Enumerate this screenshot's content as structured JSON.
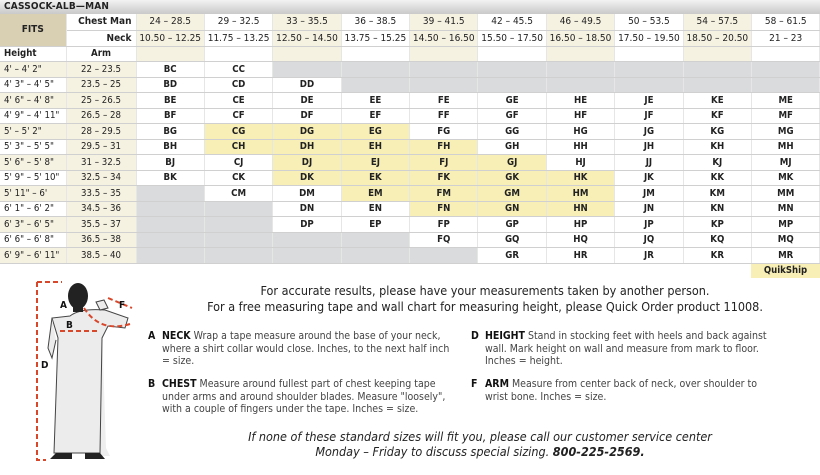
{
  "title": "CASSOCK-ALB—MAN",
  "header": {
    "fits": "FITS",
    "chest_label": "Chest Man",
    "neck_label": "Neck",
    "height_label": "Height",
    "arm_label": "Arm",
    "chest": [
      "24 – 28.5",
      "29 – 32.5",
      "33 – 35.5",
      "36 – 38.5",
      "39 – 41.5",
      "42 – 45.5",
      "46 – 49.5",
      "50 – 53.5",
      "54 – 57.5",
      "58 – 61.5"
    ],
    "neck": [
      "10.50 – 12.25",
      "11.75 – 13.25",
      "12.50 – 14.50",
      "13.75 – 15.25",
      "14.50 – 16.50",
      "15.50 – 17.50",
      "16.50 – 18.50",
      "17.50 – 19.50",
      "18.50 – 20.50",
      "21 – 23"
    ]
  },
  "rows": [
    {
      "height": "4' – 4' 2\"",
      "arm": "22 – 23.5",
      "sizes": [
        "BC",
        "CC",
        null,
        null,
        null,
        null,
        null,
        null,
        null,
        null
      ]
    },
    {
      "height": "4' 3\" – 4' 5\"",
      "arm": "23.5 – 25",
      "sizes": [
        "BD",
        "CD",
        "DD",
        null,
        null,
        null,
        null,
        null,
        null,
        null
      ]
    },
    {
      "height": "4' 6\" – 4' 8\"",
      "arm": "25 – 26.5",
      "sizes": [
        "BE",
        "CE",
        "DE",
        "EE",
        "FE",
        "GE",
        "HE",
        "JE",
        "KE",
        "ME"
      ]
    },
    {
      "height": "4' 9\" – 4' 11\"",
      "arm": "26.5 – 28",
      "sizes": [
        "BF",
        "CF",
        "DF",
        "EF",
        "FF",
        "GF",
        "HF",
        "JF",
        "KF",
        "MF"
      ]
    },
    {
      "height": "5' – 5' 2\"",
      "arm": "28 – 29.5",
      "sizes": [
        "BG",
        "CG",
        "DG",
        "EG",
        "FG",
        "GG",
        "HG",
        "JG",
        "KG",
        "MG"
      ]
    },
    {
      "height": "5' 3\" – 5' 5\"",
      "arm": "29.5 – 31",
      "sizes": [
        "BH",
        "CH",
        "DH",
        "EH",
        "FH",
        "GH",
        "HH",
        "JH",
        "KH",
        "MH"
      ]
    },
    {
      "height": "5' 6\" – 5' 8\"",
      "arm": "31 – 32.5",
      "sizes": [
        "BJ",
        "CJ",
        "DJ",
        "EJ",
        "FJ",
        "GJ",
        "HJ",
        "JJ",
        "KJ",
        "MJ"
      ]
    },
    {
      "height": "5' 9\" – 5' 10\"",
      "arm": "32.5 – 34",
      "sizes": [
        "BK",
        "CK",
        "DK",
        "EK",
        "FK",
        "GK",
        "HK",
        "JK",
        "KK",
        "MK"
      ]
    },
    {
      "height": "5' 11\" – 6'",
      "arm": "33.5 – 35",
      "sizes": [
        null,
        "CM",
        "DM",
        "EM",
        "FM",
        "GM",
        "HM",
        "JM",
        "KM",
        "MM"
      ]
    },
    {
      "height": "6' 1\" – 6' 2\"",
      "arm": "34.5 – 36",
      "sizes": [
        null,
        null,
        "DN",
        "EN",
        "FN",
        "GN",
        "HN",
        "JN",
        "KN",
        "MN"
      ]
    },
    {
      "height": "6' 3\" – 6' 5\"",
      "arm": "35.5 – 37",
      "sizes": [
        null,
        null,
        "DP",
        "EP",
        "FP",
        "GP",
        "HP",
        "JP",
        "KP",
        "MP"
      ]
    },
    {
      "height": "6' 6\" – 6' 8\"",
      "arm": "36.5 – 38",
      "sizes": [
        null,
        null,
        null,
        null,
        "FQ",
        "GQ",
        "HQ",
        "JQ",
        "KQ",
        "MQ"
      ]
    },
    {
      "height": "6' 9\" – 6' 11\"",
      "arm": "38.5 – 40",
      "sizes": [
        null,
        null,
        null,
        null,
        null,
        "GR",
        "HR",
        "JR",
        "KR",
        "MR"
      ]
    }
  ],
  "quikship_label": "QuikShip",
  "quikship_sizes": [
    "CG",
    "DG",
    "EG",
    "CH",
    "DH",
    "EH",
    "FH",
    "DJ",
    "EJ",
    "FJ",
    "GJ",
    "DK",
    "EK",
    "FK",
    "GK",
    "HK",
    "EM",
    "FM",
    "GM",
    "HM",
    "FN",
    "GN",
    "HN"
  ],
  "colors": {
    "quikship": "#f8efb6",
    "unavailable": "#dadbdd",
    "fits": "#d9d0b4",
    "tint": "#f6f2e2",
    "tape": "#d9472b"
  },
  "intro": [
    "For accurate results, please have your measurements taken by another person.",
    "For a free measuring tape and wall chart for measuring height, please Quick Order product 11008."
  ],
  "figure_labels": {
    "a": "A",
    "b": "B",
    "d": "D",
    "f": "F"
  },
  "instructions": [
    {
      "letter": "A",
      "name": "NECK",
      "text": "Wrap a tape measure around the base of your neck, where a shirt collar would close. Inches, to the next half inch = size."
    },
    {
      "letter": "B",
      "name": "CHEST",
      "text": "Measure around fullest part of chest keeping tape under arms and around shoulder blades. Measure \"loosely\", with a couple of fingers under the tape. Inches = size."
    },
    {
      "letter": "D",
      "name": "HEIGHT",
      "text": "Stand in stocking feet with heels and back against wall. Mark height on wall and measure from mark to floor. Inches = height."
    },
    {
      "letter": "F",
      "name": "ARM",
      "text": "Measure from center back of neck, over shoulder to wrist bone. Inches = size."
    }
  ],
  "footer": {
    "line1": "If none of these standard sizes will fit you, please call our customer service center",
    "line2": "Monday – Friday to discuss special sizing.",
    "phone": "800-225-2569."
  }
}
